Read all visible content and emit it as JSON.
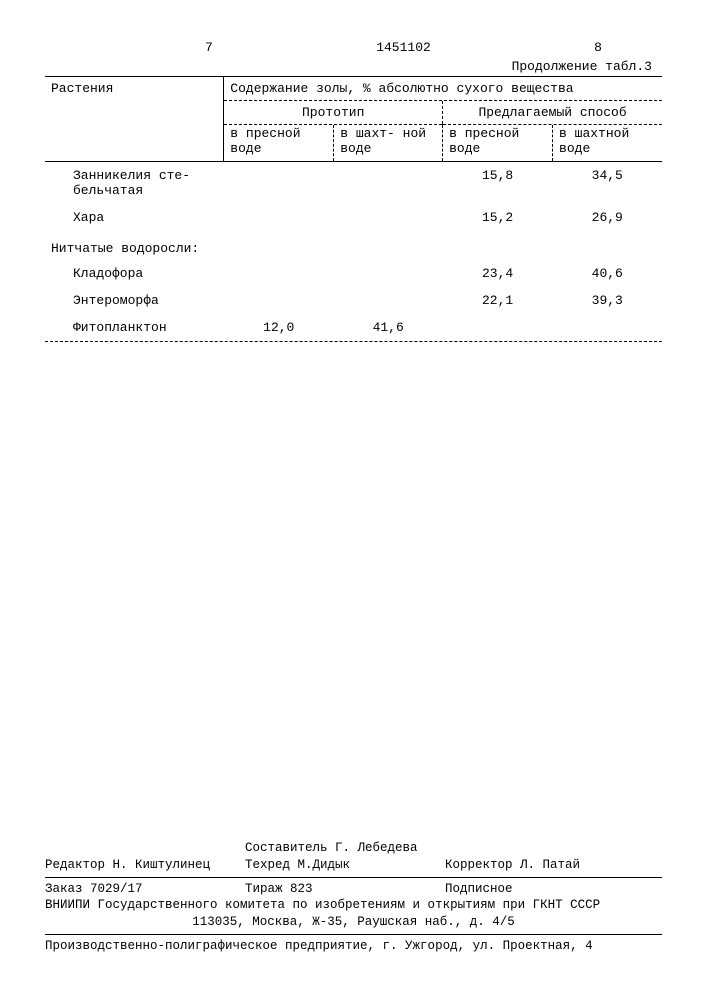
{
  "header": {
    "left_page": "7",
    "doc_number": "1451102",
    "right_page": "8",
    "continuation": "Продолжение табл.3"
  },
  "table": {
    "col_plants": "Растения",
    "main_header": "Содержание золы, % абсолютно сухого вещества",
    "sub1": "Прототип",
    "sub2": "Предлагаемый способ",
    "subsub": {
      "a": "в пресной воде",
      "b": "в шахт-\nной воде",
      "c": "в пресной воде",
      "d": "в шахтной воде"
    },
    "rows": [
      {
        "label": "Занникелия сте-\nбельчатая",
        "indent": true,
        "a": "",
        "b": "",
        "c": "15,8",
        "d": "34,5"
      },
      {
        "label": "Хара",
        "indent": true,
        "a": "",
        "b": "",
        "c": "15,2",
        "d": "26,9"
      }
    ],
    "section": "Нитчатые водоросли:",
    "rows2": [
      {
        "label": "Кладофора",
        "indent": true,
        "a": "",
        "b": "",
        "c": "23,4",
        "d": "40,6"
      },
      {
        "label": "Энтероморфа",
        "indent": true,
        "a": "",
        "b": "",
        "c": "22,1",
        "d": "39,3"
      },
      {
        "label": "Фитопланктон",
        "indent": true,
        "a": "12,0",
        "b": "41,6",
        "c": "",
        "d": ""
      }
    ]
  },
  "footer": {
    "compiler": "Составитель Г. Лебедева",
    "editor": "Редактор Н. Киштулинец",
    "techred": "Техред М.Дидык",
    "corrector": "Корректор Л. Патай",
    "order": "Заказ 7029/17",
    "tirazh": "Тираж 823",
    "podpisnoe": "Подписное",
    "org1": "ВНИИПИ Государственного комитета по изобретениям и открытиям при ГКНТ СССР",
    "org2": "113035, Москва, Ж-35, Раушская наб., д. 4/5",
    "printer": "Производственно-полиграфическое предприятие, г. Ужгород, ул. Проектная, 4"
  }
}
